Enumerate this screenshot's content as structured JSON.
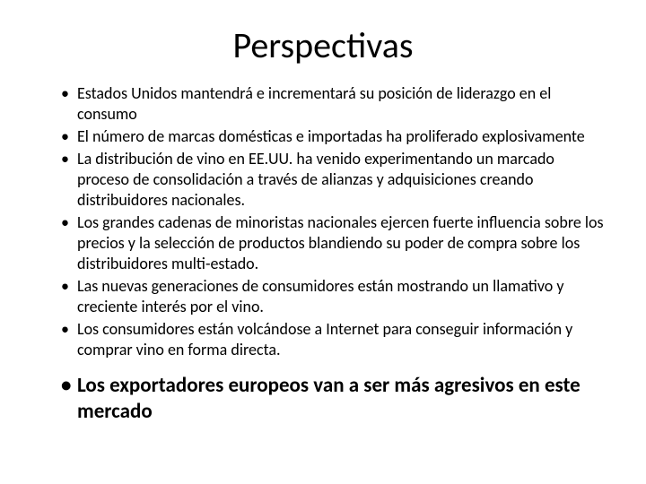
{
  "title": "Perspectivas",
  "bullets": [
    {
      "text": "Estados Unidos mantendrá  e incrementará su posición de liderazgo en el consumo",
      "bold": false
    },
    {
      "text": "El número de marcas domésticas  e importadas ha proliferado explosivamente",
      "bold": false
    },
    {
      "text": "La distribución de vino en EE.UU.  ha venido  experimentando un marcado proceso de consolidación a través de  alianzas y adquisiciones creando distribuidores nacionales.",
      "bold": false
    },
    {
      "text": "Los grandes cadenas de minoristas nacionales ejercen fuerte influencia sobre los precios y la selección de productos blandiendo su poder de compra  sobre los distribuidores multi-estado.",
      "bold": false
    },
    {
      "text": "Las nuevas generaciones de consumidores están mostrando un  llamativo y creciente interés  por el vino.",
      "bold": false
    },
    {
      "text": "Los consumidores están volcándose a Internet para conseguir información y comprar vino en forma directa.",
      "bold": false
    },
    {
      "text": "Los exportadores europeos van a ser más agresivos en este mercado",
      "bold": true
    }
  ],
  "style": {
    "background_color": "#ffffff",
    "text_color": "#000000",
    "title_fontsize": 40,
    "body_fontsize": 18,
    "bold_bullet_fontsize": 23,
    "font_family": "Calibri"
  }
}
